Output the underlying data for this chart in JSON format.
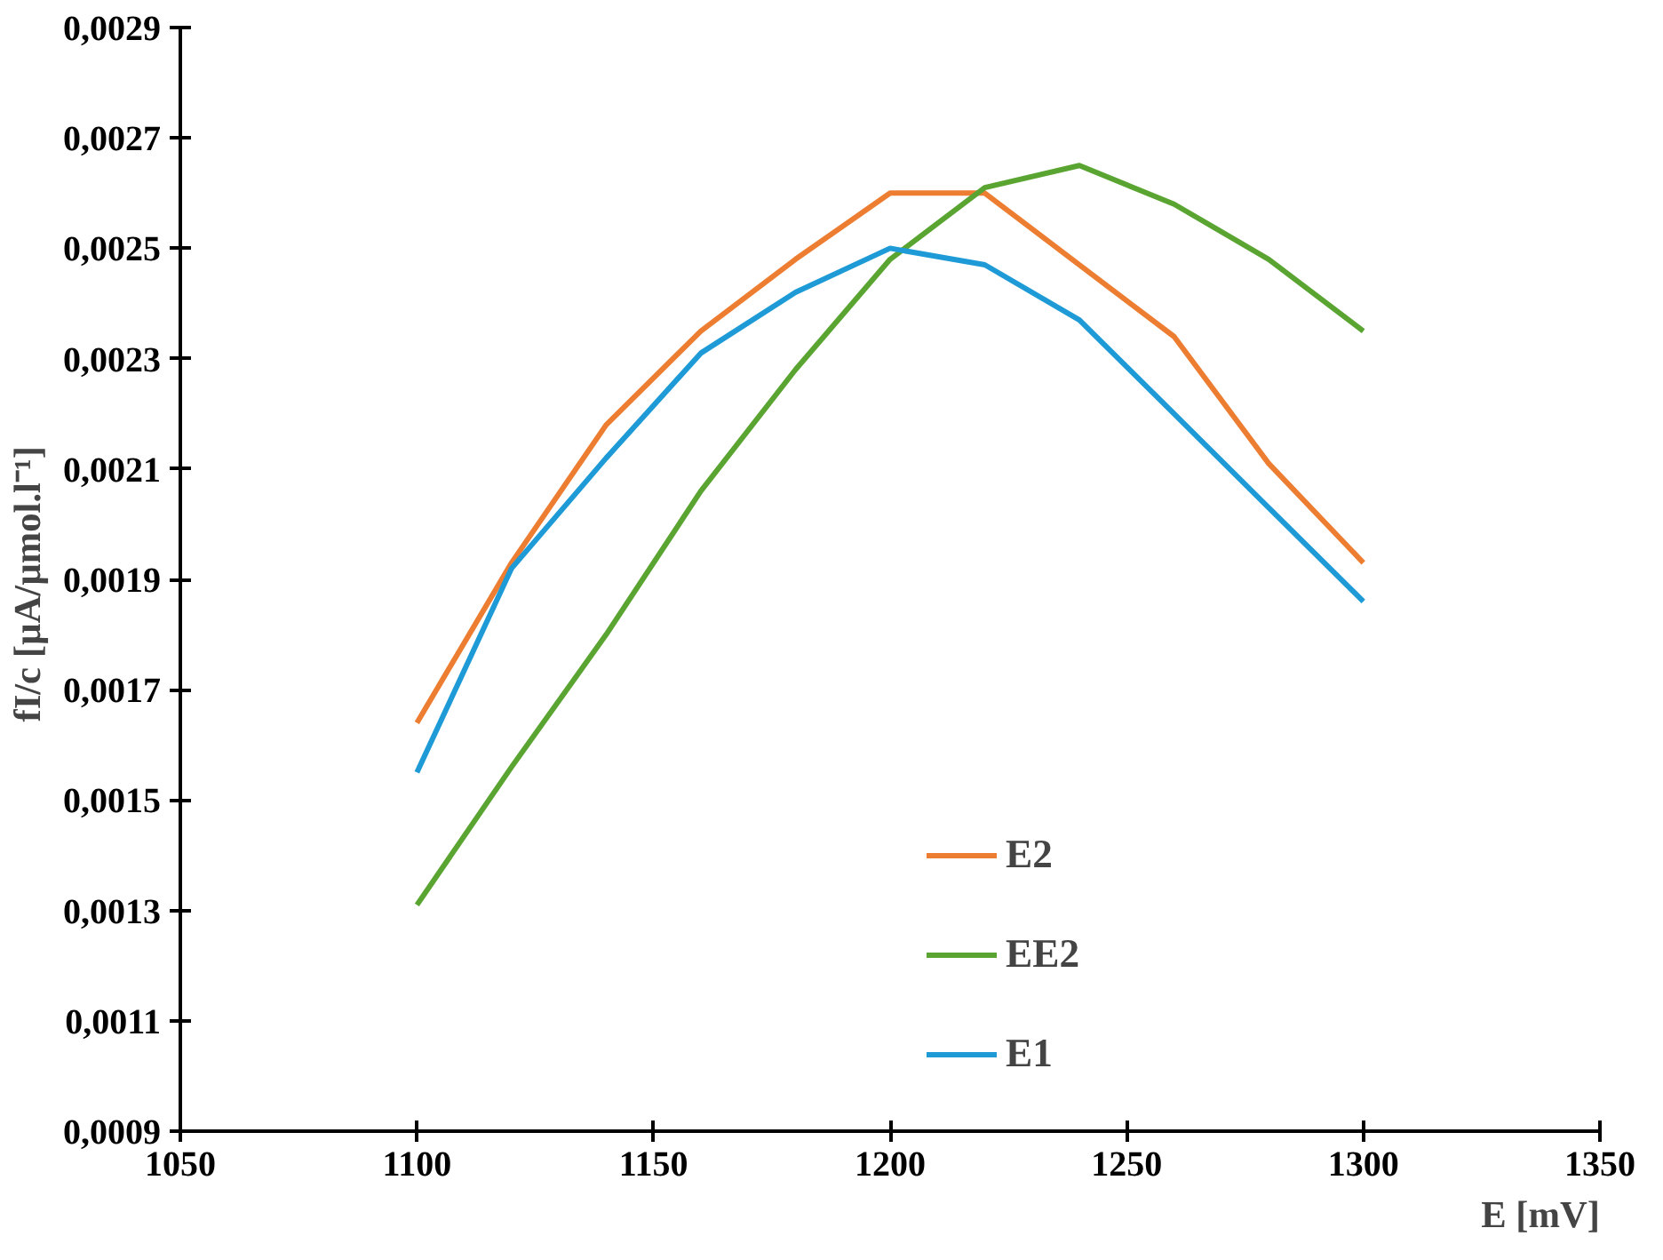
{
  "chart_data": {
    "type": "line",
    "xlabel": "E [mV]",
    "ylabel": "fI/c  [µA/µmol.l⁻¹]",
    "x": [
      1100,
      1120,
      1140,
      1160,
      1180,
      1200,
      1220,
      1240,
      1260,
      1280,
      1300
    ],
    "series": [
      {
        "name": "E2",
        "color": "#ed7d31",
        "values": [
          0.00164,
          0.00193,
          0.00218,
          0.00235,
          0.00248,
          0.0026,
          0.0026,
          0.00247,
          0.00234,
          0.00211,
          0.00193
        ]
      },
      {
        "name": "EE2",
        "color": "#5aa532",
        "values": [
          0.00131,
          0.00156,
          0.0018,
          0.00206,
          0.00228,
          0.00248,
          0.00261,
          0.00265,
          0.00258,
          0.00248,
          0.00235
        ]
      },
      {
        "name": "E1",
        "color": "#1e9bd7",
        "values": [
          0.00155,
          0.00192,
          0.00212,
          0.00231,
          0.00242,
          0.0025,
          0.00247,
          0.00237,
          0.0022,
          0.00203,
          0.00186
        ]
      }
    ],
    "xlim": [
      1050,
      1350
    ],
    "xticks": [
      1050,
      1100,
      1150,
      1200,
      1250,
      1300,
      1350
    ],
    "ylim": [
      0.0009,
      0.0029
    ],
    "yticks": [
      {
        "value": 0.0009,
        "label": "0,0009"
      },
      {
        "value": 0.0011,
        "label": "0,0011"
      },
      {
        "value": 0.0013,
        "label": "0,0013"
      },
      {
        "value": 0.0015,
        "label": "0,0015"
      },
      {
        "value": 0.0017,
        "label": "0,0017"
      },
      {
        "value": 0.0019,
        "label": "0,0019"
      },
      {
        "value": 0.0021,
        "label": "0,0021"
      },
      {
        "value": 0.0023,
        "label": "0,0023"
      },
      {
        "value": 0.0025,
        "label": "0,0025"
      },
      {
        "value": 0.0027,
        "label": "0,0027"
      },
      {
        "value": 0.0029,
        "label": "0,0029"
      }
    ],
    "grid": false,
    "legend": "bottom",
    "marker": "none",
    "line_style": "solid"
  }
}
